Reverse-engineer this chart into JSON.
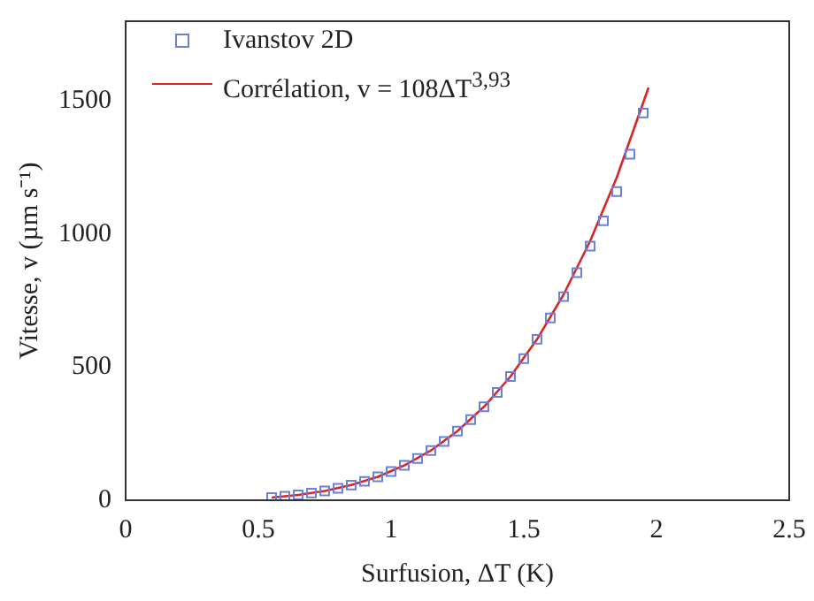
{
  "chart_data": {
    "type": "scatter",
    "xlabel": "Surfusion, ΔT (K)",
    "ylabel": "Vitesse, v (µm s⁻¹)",
    "xlim": [
      0,
      2.5
    ],
    "xticks": [
      0,
      0.5,
      1,
      1.5,
      2,
      2.5
    ],
    "ylim": [
      0,
      1800
    ],
    "yticks": [
      0,
      500,
      1000,
      1500
    ],
    "grid": false,
    "legend": "top left",
    "marker": "square",
    "series": [
      {
        "name": "Ivanstov 2D",
        "color": "#6a7fd6",
        "x": [
          0.55,
          0.6,
          0.65,
          0.7,
          0.75,
          0.8,
          0.85,
          0.9,
          0.95,
          1.0,
          1.05,
          1.1,
          1.15,
          1.2,
          1.25,
          1.3,
          1.35,
          1.4,
          1.45,
          1.5,
          1.55,
          1.6,
          1.65,
          1.7,
          1.75,
          1.8,
          1.85,
          1.9,
          1.95
        ],
        "values": [
          10,
          15,
          20,
          27,
          35,
          45,
          57,
          71,
          88,
          108,
          131,
          157,
          187,
          221,
          260,
          303,
          351,
          405,
          465,
          532,
          605,
          685,
          765,
          855,
          955,
          1050,
          1160,
          1300,
          1455
        ]
      },
      {
        "name": "Corrélation, v = 108ΔT$^{3,93}$",
        "type": "line",
        "color": "#d62728",
        "marker": "none",
        "line_style": "solid",
        "x": [
          0.55,
          0.65,
          0.75,
          0.85,
          0.95,
          1.05,
          1.15,
          1.25,
          1.35,
          1.45,
          1.55,
          1.65,
          1.75,
          1.85,
          1.97
        ],
        "values": [
          10,
          20,
          35,
          57,
          88,
          131,
          187,
          260,
          351,
          465,
          605,
          773,
          974,
          1212,
          1551
        ]
      }
    ]
  }
}
